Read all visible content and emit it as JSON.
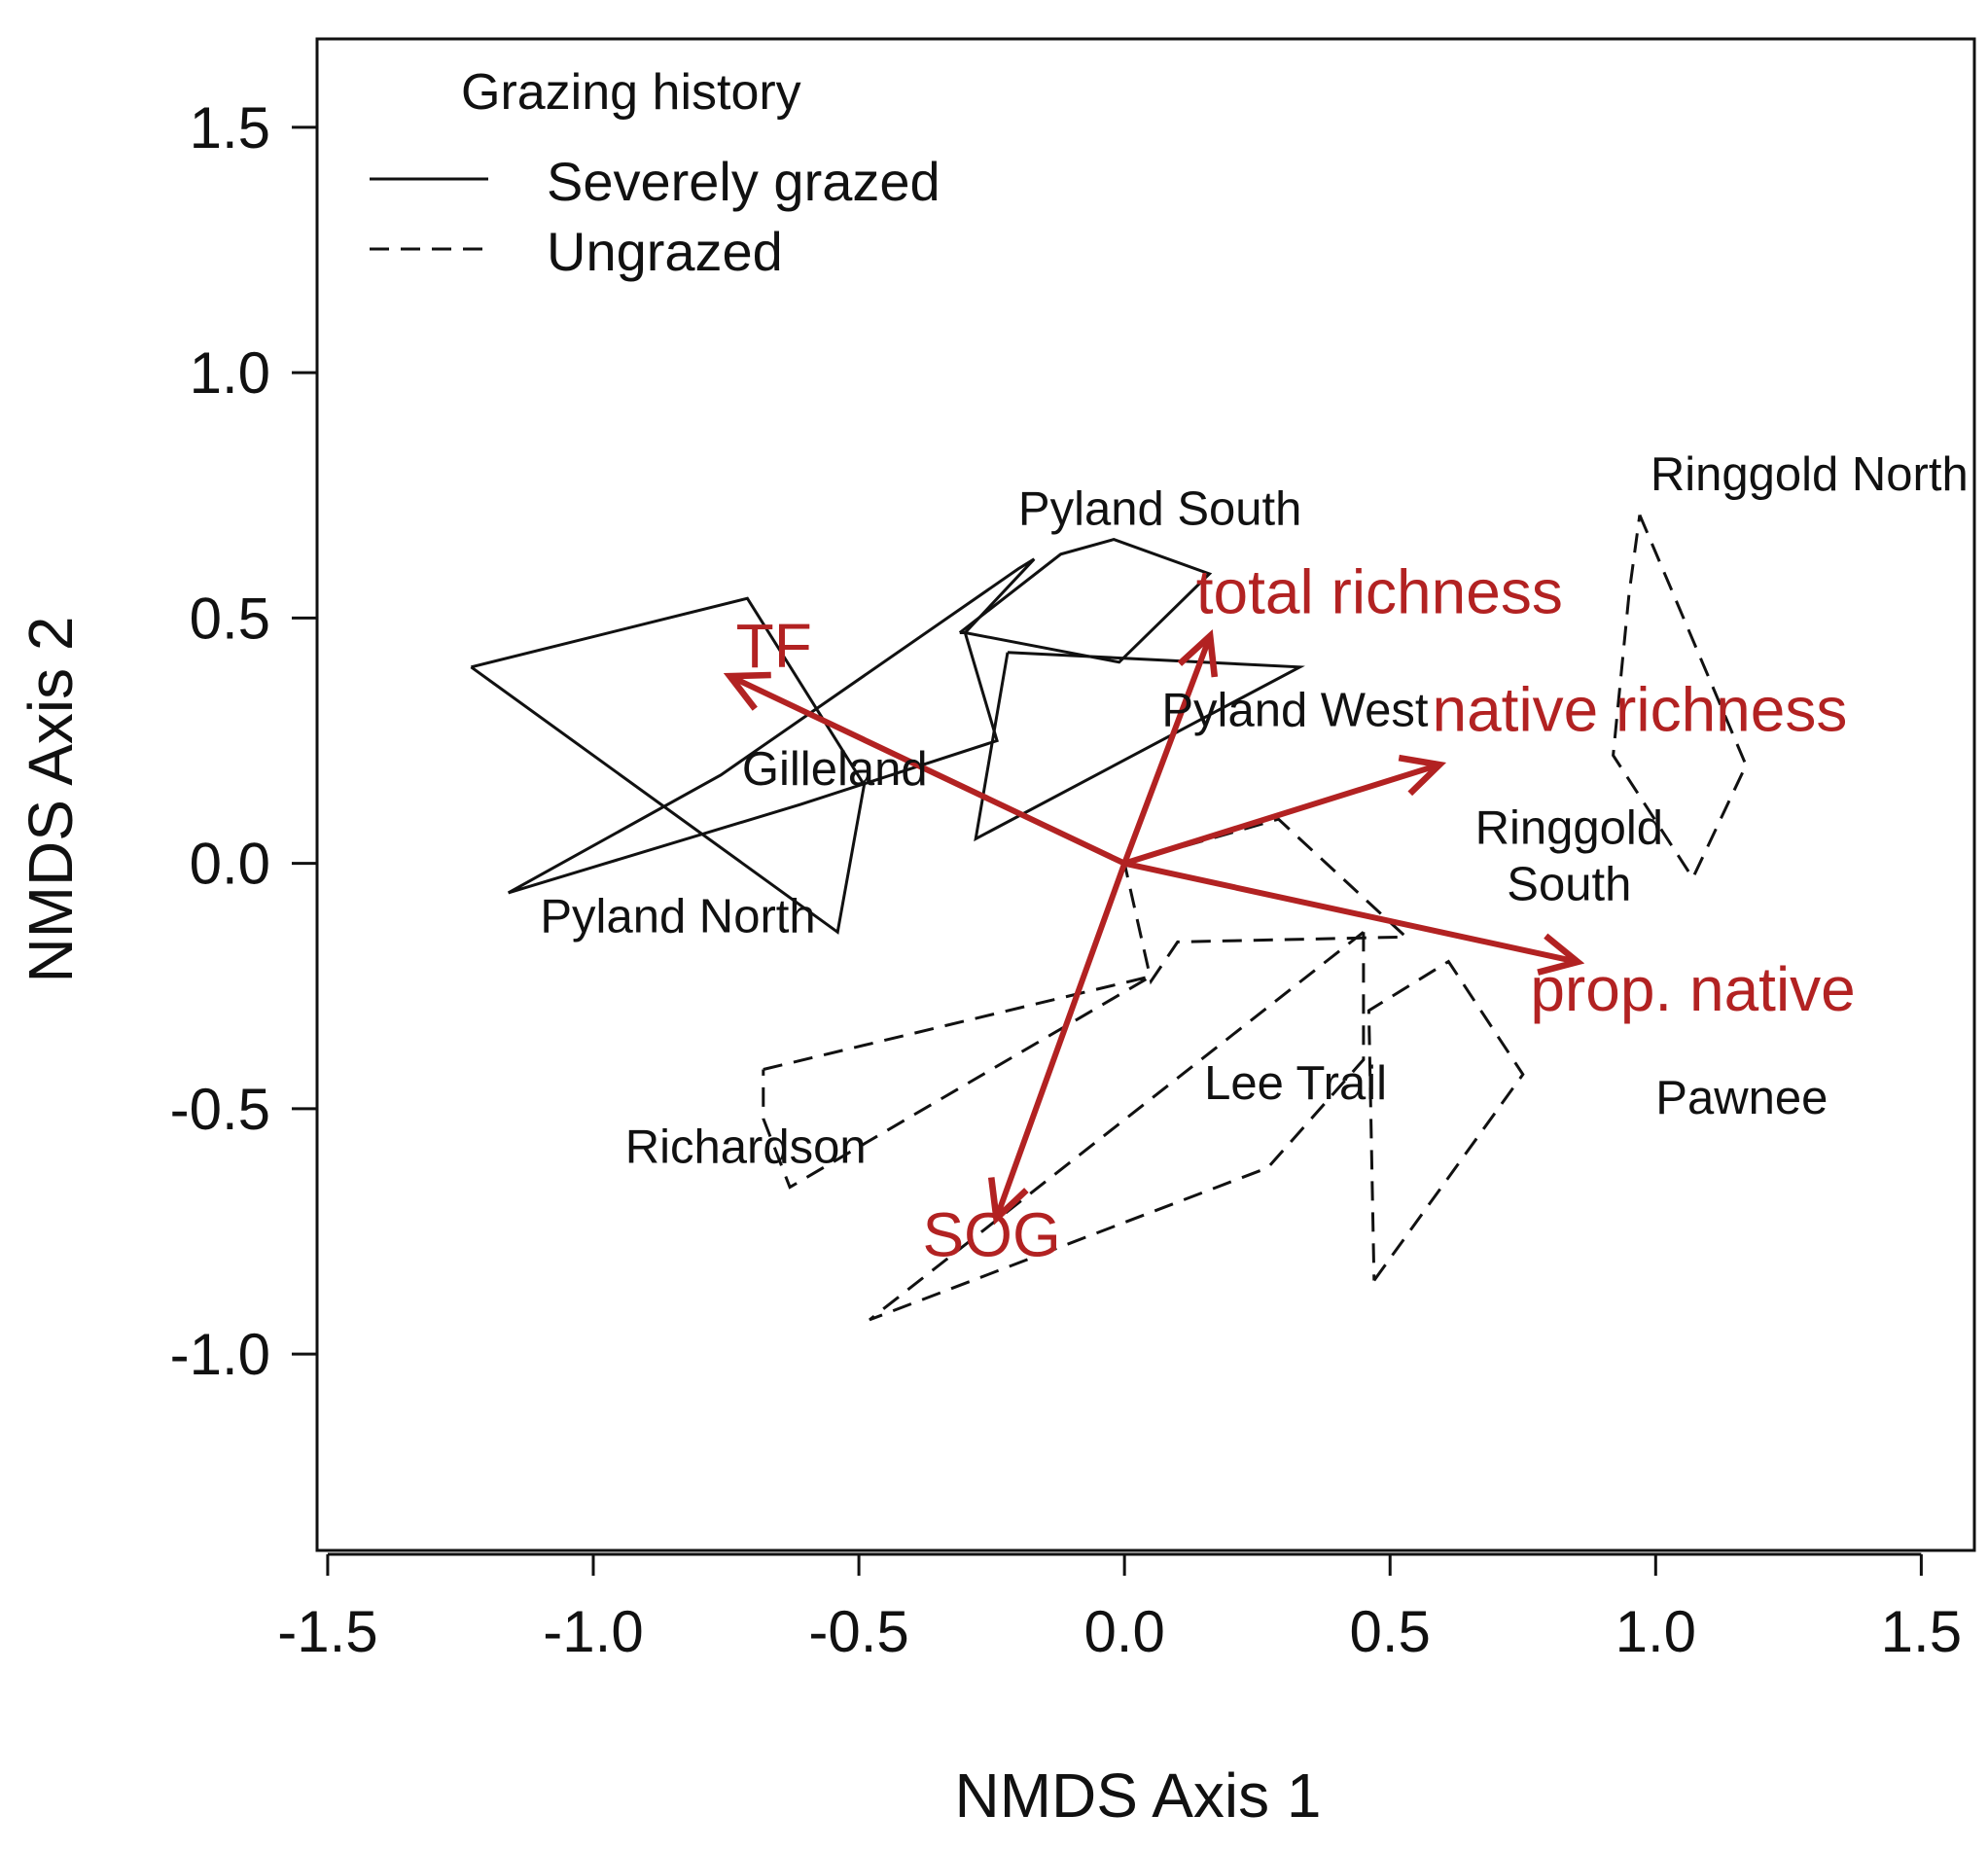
{
  "chart_data": {
    "type": "scatter",
    "subtype": "NMDS ordination with site hulls and environmental vectors",
    "xlabel": "NMDS Axis 1",
    "ylabel": "NMDS Axis 2",
    "xlim": [
      -1.52,
      1.6
    ],
    "ylim": [
      -1.4,
      1.68
    ],
    "xticks": [
      -1.5,
      -1.0,
      -0.5,
      0.0,
      0.5,
      1.0,
      1.5
    ],
    "xtick_labels": [
      "-1.5",
      "-1.0",
      "-0.5",
      "0.0",
      "0.5",
      "1.0",
      "1.5"
    ],
    "yticks": [
      -1.0,
      -0.5,
      0.0,
      0.5,
      1.0,
      1.5
    ],
    "ytick_labels": [
      "-1.0",
      "-0.5",
      "0.0",
      "0.5",
      "1.0",
      "1.5"
    ],
    "grid": false,
    "legend": {
      "title": "Grazing history",
      "placement": "top-left",
      "entries": [
        {
          "label": "Severely grazed",
          "linestyle": "solid"
        },
        {
          "label": "Ungrazed",
          "linestyle": "dashed"
        }
      ]
    },
    "sites": [
      {
        "name": "Pyland North",
        "group": "Severely grazed",
        "label_lines": [
          "Pyland North"
        ],
        "label_xy": [
          -1.1,
          -0.14
        ],
        "hull": [
          [
            -1.16,
            -0.06
          ],
          [
            -0.76,
            0.18
          ],
          [
            -0.2,
            0.6
          ],
          [
            -0.17,
            0.62
          ],
          [
            -0.3,
            0.47
          ],
          [
            -0.24,
            0.25
          ],
          [
            -0.61,
            0.12
          ],
          [
            -1.16,
            -0.06
          ]
        ]
      },
      {
        "name": "Gilleland",
        "group": "Severely grazed",
        "label_lines": [
          "Gilleland"
        ],
        "label_xy": [
          -0.72,
          0.16
        ],
        "hull": [
          [
            -1.23,
            0.4
          ],
          [
            -0.71,
            0.54
          ],
          [
            -0.49,
            0.16
          ],
          [
            -0.54,
            -0.14
          ],
          [
            -1.23,
            0.4
          ]
        ]
      },
      {
        "name": "Pyland South",
        "group": "Severely grazed",
        "label_lines": [
          "Pyland South"
        ],
        "label_xy": [
          -0.2,
          0.69
        ],
        "hull": [
          [
            -0.31,
            0.47
          ],
          [
            -0.12,
            0.63
          ],
          [
            -0.02,
            0.66
          ],
          [
            0.16,
            0.59
          ],
          [
            -0.01,
            0.41
          ],
          [
            -0.3,
            0.47
          ],
          [
            -0.31,
            0.47
          ]
        ]
      },
      {
        "name": "Pyland West",
        "group": "Severely grazed",
        "label_lines": [
          "Pyland West"
        ],
        "label_xy": [
          0.07,
          0.28
        ],
        "hull": [
          [
            -0.22,
            0.43
          ],
          [
            0.33,
            0.4
          ],
          [
            -0.28,
            0.05
          ],
          [
            -0.22,
            0.43
          ]
        ]
      },
      {
        "name": "Ringgold North",
        "group": "Ungrazed",
        "label_lines": [
          "Ringgold North"
        ],
        "label_xy": [
          0.99,
          0.76
        ],
        "hull": [
          [
            0.97,
            0.71
          ],
          [
            1.17,
            0.2
          ],
          [
            1.07,
            -0.03
          ],
          [
            0.92,
            0.22
          ],
          [
            0.95,
            0.55
          ],
          [
            0.97,
            0.71
          ]
        ]
      },
      {
        "name": "Ringgold South",
        "group": "Ungrazed",
        "label_lines": [
          "Ringgold",
          "South"
        ],
        "label_xy": [
          0.66,
          0.04
        ],
        "hull": [
          [
            0.0,
            0.0
          ],
          [
            0.29,
            0.09
          ],
          [
            0.53,
            -0.15
          ],
          [
            0.1,
            -0.16
          ],
          [
            0.05,
            -0.24
          ],
          [
            0.0,
            0.0
          ]
        ]
      },
      {
        "name": "Lee Trail",
        "group": "Ungrazed",
        "label_lines": [
          "Lee Trail"
        ],
        "label_xy": [
          0.15,
          -0.48
        ],
        "hull": [
          [
            0.45,
            -0.14
          ],
          [
            0.45,
            -0.4
          ],
          [
            0.27,
            -0.62
          ],
          [
            -0.48,
            -0.93
          ],
          [
            0.45,
            -0.14
          ]
        ]
      },
      {
        "name": "Richardson",
        "group": "Ungrazed",
        "label_lines": [
          "Richardson"
        ],
        "label_xy": [
          -0.94,
          -0.61
        ],
        "hull": [
          [
            -0.68,
            -0.42
          ],
          [
            0.05,
            -0.23
          ],
          [
            -0.63,
            -0.66
          ],
          [
            -0.68,
            -0.52
          ],
          [
            -0.68,
            -0.42
          ]
        ]
      },
      {
        "name": "Pawnee",
        "group": "Ungrazed",
        "label_lines": [
          "Pawnee"
        ],
        "label_xy": [
          1.0,
          -0.51
        ],
        "hull": [
          [
            0.47,
            -0.85
          ],
          [
            0.75,
            -0.43
          ],
          [
            0.61,
            -0.2
          ],
          [
            0.46,
            -0.3
          ],
          [
            0.47,
            -0.85
          ]
        ]
      }
    ],
    "vectors": [
      {
        "name": "TF",
        "x": -0.74,
        "y": 0.38,
        "label_xy": [
          -0.66,
          0.4
        ]
      },
      {
        "name": "total richness",
        "x": 0.16,
        "y": 0.46,
        "label_xy": [
          0.48,
          0.51
        ]
      },
      {
        "name": "native richness",
        "x": 0.59,
        "y": 0.2,
        "label_xy": [
          0.97,
          0.27
        ]
      },
      {
        "name": "prop. native",
        "x": 0.85,
        "y": -0.2,
        "label_xy": [
          1.07,
          -0.3
        ]
      },
      {
        "name": "SOG",
        "x": -0.24,
        "y": -0.72,
        "label_xy": [
          -0.25,
          -0.8
        ]
      }
    ],
    "colors": {
      "vectors": "#b22222",
      "hulls": "#111111",
      "axes": "#111111"
    }
  }
}
